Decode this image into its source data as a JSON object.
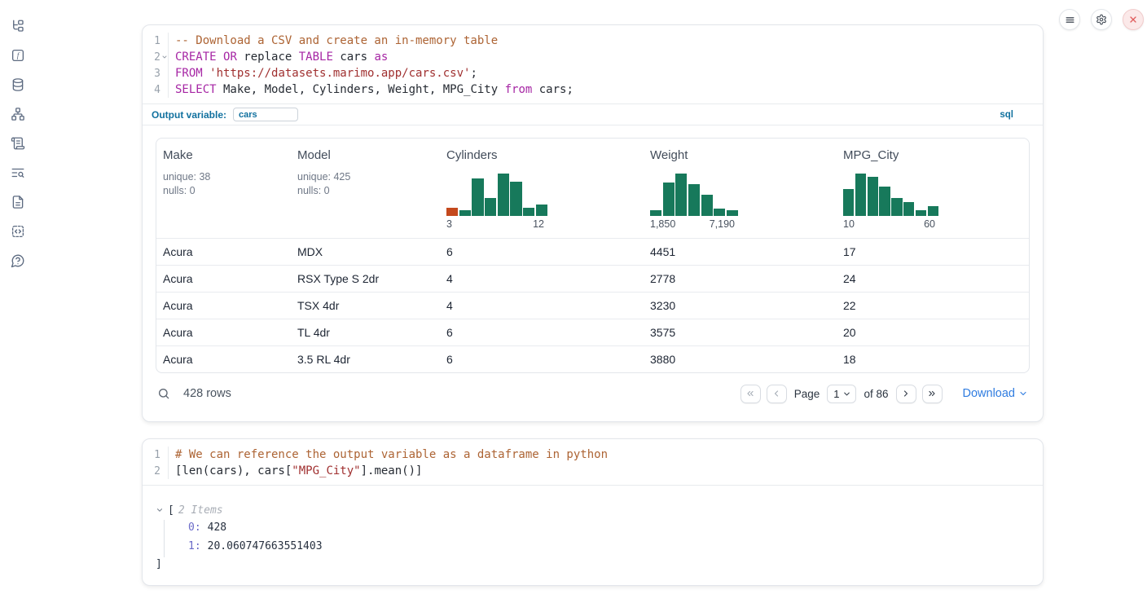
{
  "colors": {
    "hist_green": "#17795b",
    "hist_orange": "#c4491d",
    "accent_blue": "#11719f",
    "link_blue": "#2f7ce0"
  },
  "sidebar": {
    "items": [
      {
        "icon": "file-explorer-icon"
      },
      {
        "icon": "variables-icon"
      },
      {
        "icon": "datasources-icon"
      },
      {
        "icon": "dependency-graph-icon"
      },
      {
        "icon": "scratchpad-icon"
      },
      {
        "icon": "logs-icon"
      },
      {
        "icon": "documentation-icon"
      },
      {
        "icon": "snippets-icon"
      },
      {
        "icon": "help-icon"
      }
    ]
  },
  "topbar": {
    "buttons": [
      {
        "icon": "menu-icon"
      },
      {
        "icon": "settings-icon"
      },
      {
        "icon": "shutdown-icon"
      }
    ]
  },
  "sql_cell": {
    "language_badge": "sql",
    "output_variable_label": "Output variable:",
    "output_variable_value": "cars",
    "lines": [
      {
        "num": "1",
        "fold": false,
        "tokens": [
          [
            "comment",
            "-- Download a CSV and create an in-memory table"
          ]
        ]
      },
      {
        "num": "2",
        "fold": true,
        "tokens": [
          [
            "kw",
            "CREATE"
          ],
          [
            "plain",
            " "
          ],
          [
            "kw",
            "OR"
          ],
          [
            "plain",
            " replace "
          ],
          [
            "kw",
            "TABLE"
          ],
          [
            "plain",
            " cars "
          ],
          [
            "kw",
            "as"
          ]
        ]
      },
      {
        "num": "3",
        "fold": false,
        "tokens": [
          [
            "kw",
            "FROM"
          ],
          [
            "plain",
            " "
          ],
          [
            "str",
            "'https://datasets.marimo.app/cars.csv'"
          ],
          [
            "plain",
            ";"
          ]
        ]
      },
      {
        "num": "4",
        "fold": false,
        "tokens": [
          [
            "kw",
            "SELECT"
          ],
          [
            "plain",
            " Make, Model, Cylinders, Weight, MPG_City "
          ],
          [
            "kw",
            "from"
          ],
          [
            "plain",
            " cars;"
          ]
        ]
      }
    ]
  },
  "data_table": {
    "columns": [
      {
        "name": "Make",
        "stats": [
          "unique: 38",
          "nulls: 0"
        ]
      },
      {
        "name": "Model",
        "stats": [
          "unique: 425",
          "nulls: 0"
        ]
      },
      {
        "name": "Cylinders",
        "hist": {
          "bars": [
            20,
            13,
            88,
            42,
            100,
            80,
            20,
            27
          ],
          "highlight_index": 0,
          "min_label": "3",
          "max_label": "12"
        }
      },
      {
        "name": "Weight",
        "hist": {
          "bars": [
            13,
            78,
            100,
            75,
            50,
            18,
            13
          ],
          "highlight_index": -1,
          "min_label": "1,850",
          "max_label": "7,190"
        }
      },
      {
        "name": "MPG_City",
        "hist": {
          "bars": [
            63,
            100,
            92,
            70,
            42,
            32,
            13,
            23
          ],
          "highlight_index": -1,
          "min_label": "10",
          "max_label": "60"
        }
      }
    ],
    "rows": [
      [
        "Acura",
        "MDX",
        "6",
        "4451",
        "17"
      ],
      [
        "Acura",
        "RSX Type S 2dr",
        "4",
        "2778",
        "24"
      ],
      [
        "Acura",
        "TSX 4dr",
        "4",
        "3230",
        "22"
      ],
      [
        "Acura",
        "TL 4dr",
        "6",
        "3575",
        "20"
      ],
      [
        "Acura",
        "3.5 RL 4dr",
        "6",
        "3880",
        "18"
      ]
    ],
    "footer": {
      "row_count": "428 rows",
      "page_label": "Page",
      "page_value": "1",
      "total_pages_label": "of 86",
      "download_label": "Download"
    }
  },
  "python_cell": {
    "lines": [
      {
        "num": "1",
        "fold": false,
        "tokens": [
          [
            "comment",
            "# We can reference the output variable as a dataframe in python"
          ]
        ]
      },
      {
        "num": "2",
        "fold": false,
        "tokens": [
          [
            "plain",
            "[len(cars), cars["
          ],
          [
            "str",
            "\"MPG_City\""
          ],
          [
            "plain",
            "].mean()]"
          ]
        ]
      }
    ]
  },
  "output_tree": {
    "bracket_open": "[",
    "items_label": "2 Items",
    "entries": [
      {
        "key": "0:",
        "value": "428"
      },
      {
        "key": "1:",
        "value": "20.060747663551403"
      }
    ],
    "bracket_close": "]"
  }
}
